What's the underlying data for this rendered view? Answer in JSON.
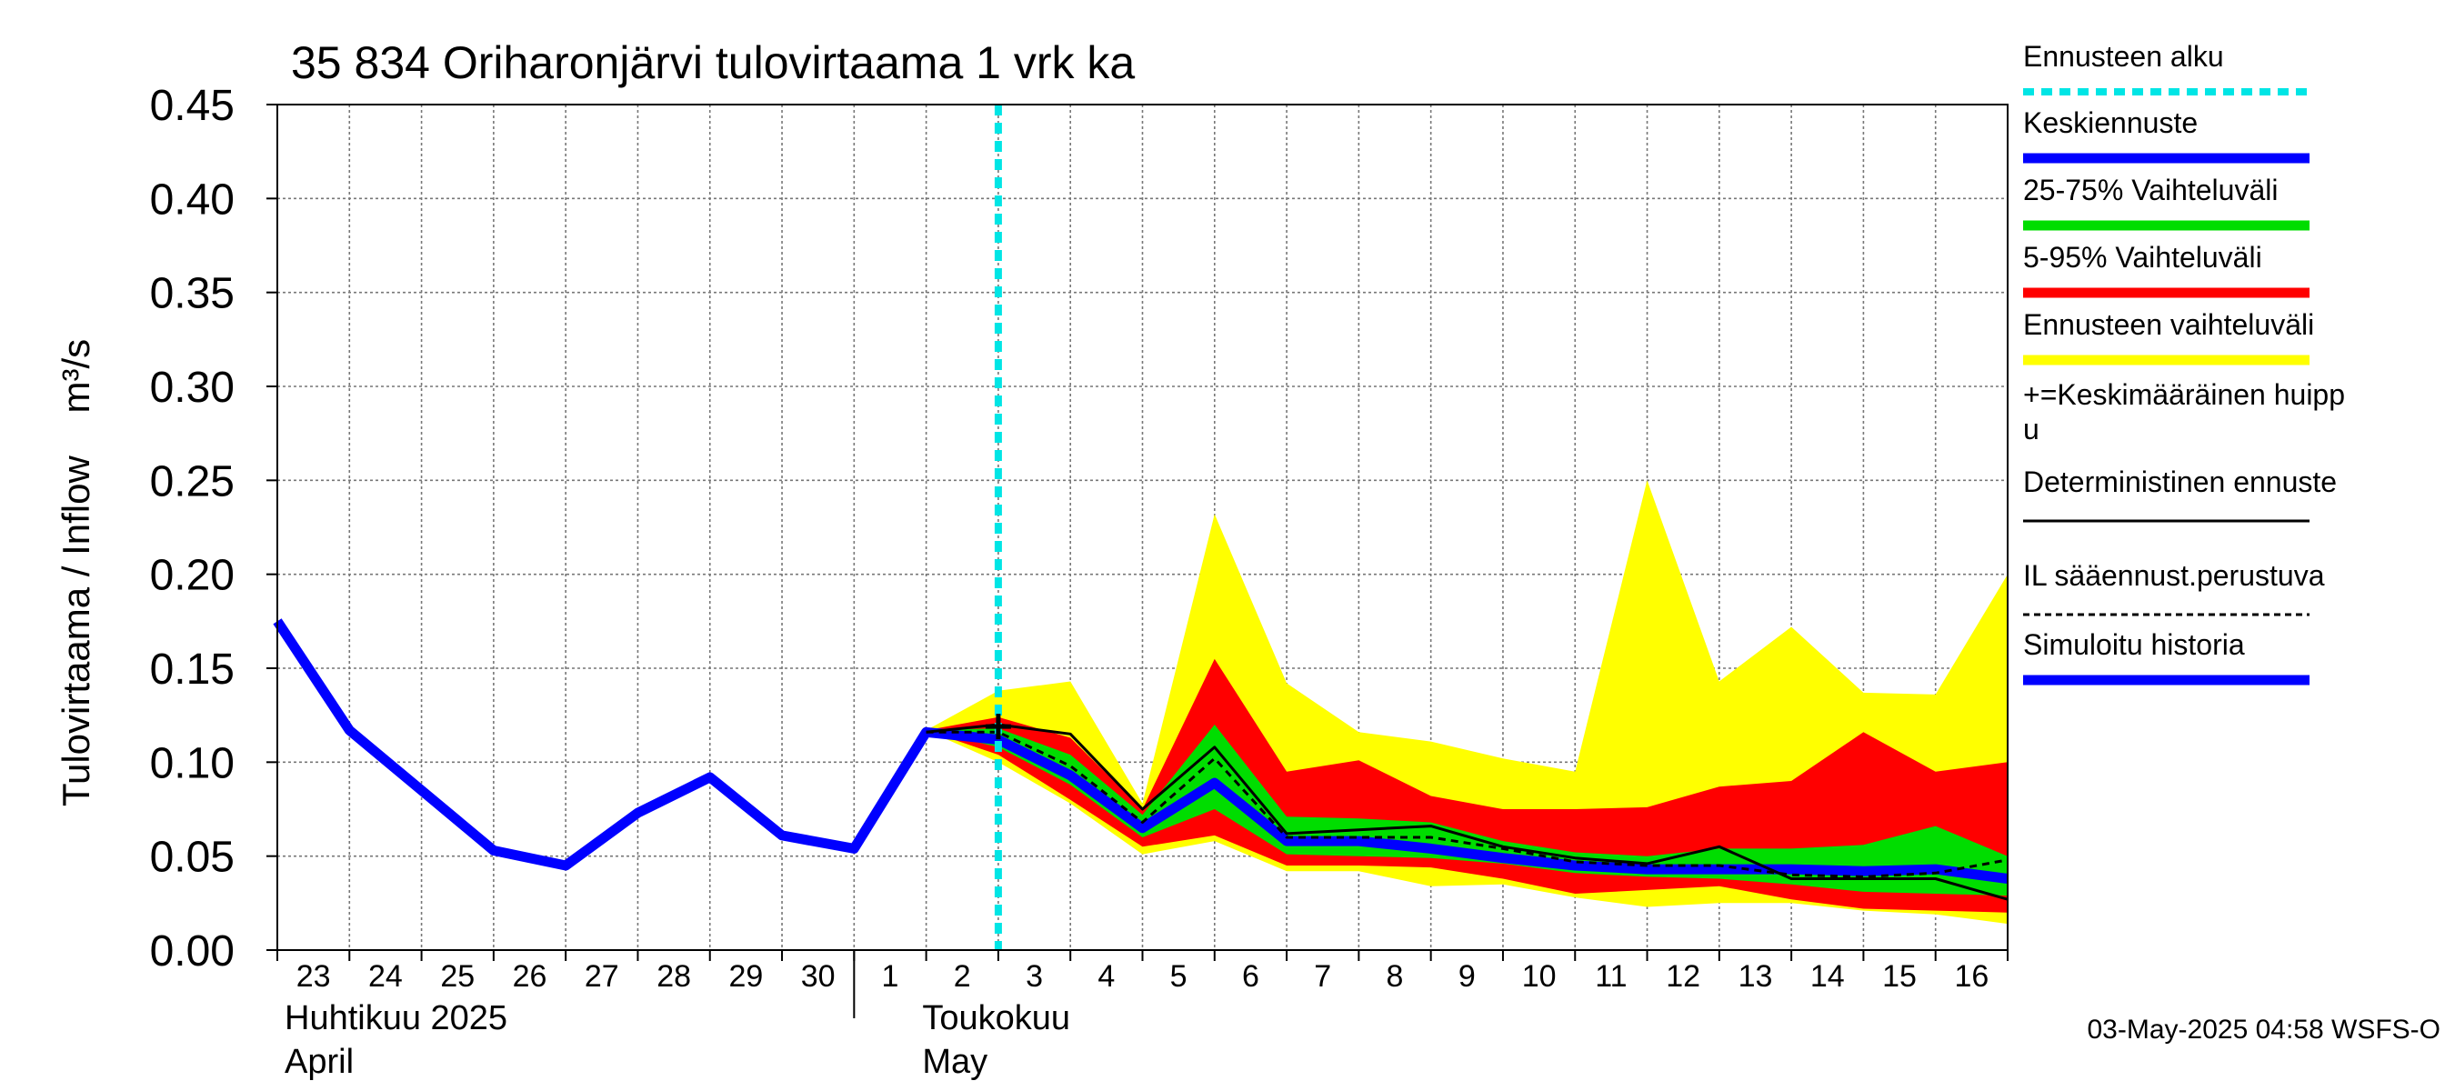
{
  "chart_data": {
    "type": "area",
    "title": "35 834 Oriharonjärvi tulovirtaama 1 vrk ka",
    "ylabel": "Tulovirtaama / Inflow    m³/s",
    "ylim": [
      0,
      0.45
    ],
    "yticks": [
      "0.00",
      "0.05",
      "0.10",
      "0.15",
      "0.20",
      "0.25",
      "0.30",
      "0.35",
      "0.40",
      "0.45"
    ],
    "xrange_days": [
      0,
      24
    ],
    "x_tick_labels": [
      "23",
      "24",
      "25",
      "26",
      "27",
      "28",
      "29",
      "30",
      "1",
      "2",
      "3",
      "4",
      "5",
      "6",
      "7",
      "8",
      "9",
      "10",
      "11",
      "12",
      "13",
      "14",
      "15",
      "16"
    ],
    "months": [
      {
        "fi": "Huhtikuu  2025",
        "en": "April",
        "start_day": 0
      },
      {
        "fi": "Toukokuu",
        "en": "May",
        "start_day": 8
      }
    ],
    "forecast_start_day": 10,
    "footer": "03-May-2025 04:58 WSFS-O",
    "legend": [
      {
        "label": "Ennusteen alku",
        "color": "#00e5e5",
        "style": "dotted"
      },
      {
        "label": "Keskiennuste",
        "color": "#0000ff",
        "style": "solid"
      },
      {
        "label": "25-75% Vaihteluväli",
        "color": "#00dd00",
        "style": "solid"
      },
      {
        "label": "5-95% Vaihteluväli",
        "color": "#ff0000",
        "style": "solid"
      },
      {
        "label": "Ennusteen vaihteluväli",
        "color": "#ffff00",
        "style": "solid"
      },
      {
        "label": "+=Keskimääräinen huipp",
        "label2": "u",
        "color": "#000000",
        "style": "marker"
      },
      {
        "label": "Deterministinen ennuste",
        "color": "#000000",
        "style": "thin"
      },
      {
        "label": "IL sääennust.perustuva",
        "color": "#000000",
        "style": "dashed"
      },
      {
        "label": "Simuloitu historia",
        "color": "#0000ff",
        "style": "solid"
      }
    ],
    "x_band": [
      9,
      10,
      11,
      12,
      13,
      14,
      15,
      16,
      17,
      18,
      19,
      20,
      21,
      22,
      23,
      24
    ],
    "yellow_band": {
      "upper": [
        0.117,
        0.138,
        0.143,
        0.078,
        0.232,
        0.142,
        0.116,
        0.111,
        0.102,
        0.095,
        0.25,
        0.143,
        0.172,
        0.137,
        0.136,
        0.2
      ],
      "lower": [
        0.117,
        0.1,
        0.078,
        0.051,
        0.058,
        0.042,
        0.042,
        0.034,
        0.035,
        0.028,
        0.023,
        0.025,
        0.025,
        0.021,
        0.019,
        0.014
      ]
    },
    "red_band": {
      "upper": [
        0.117,
        0.124,
        0.113,
        0.075,
        0.155,
        0.095,
        0.101,
        0.082,
        0.075,
        0.075,
        0.076,
        0.087,
        0.09,
        0.116,
        0.095,
        0.1
      ],
      "lower": [
        0.117,
        0.104,
        0.08,
        0.055,
        0.061,
        0.045,
        0.045,
        0.044,
        0.038,
        0.03,
        0.032,
        0.034,
        0.027,
        0.022,
        0.021,
        0.02
      ]
    },
    "green_band": {
      "upper": [
        0.117,
        0.118,
        0.104,
        0.072,
        0.12,
        0.071,
        0.07,
        0.068,
        0.058,
        0.052,
        0.05,
        0.054,
        0.054,
        0.056,
        0.066,
        0.05
      ],
      "lower": [
        0.117,
        0.108,
        0.088,
        0.06,
        0.075,
        0.051,
        0.05,
        0.049,
        0.046,
        0.041,
        0.039,
        0.038,
        0.035,
        0.031,
        0.03,
        0.029
      ]
    },
    "series": [
      {
        "name": "Simuloitu historia",
        "color": "#0000ff",
        "x": [
          0,
          1,
          2,
          3,
          4,
          5,
          6,
          7,
          8,
          9,
          10
        ],
        "values": [
          0.175,
          0.117,
          0.085,
          0.053,
          0.045,
          0.073,
          0.092,
          0.061,
          0.054,
          0.116,
          0.112
        ]
      },
      {
        "name": "Keskiennuste",
        "color": "#0000ff",
        "x": [
          10,
          11,
          12,
          13,
          14,
          15,
          16,
          17,
          18,
          19,
          20,
          21,
          22,
          23,
          24
        ],
        "values": [
          0.112,
          0.093,
          0.065,
          0.089,
          0.058,
          0.058,
          0.054,
          0.049,
          0.045,
          0.043,
          0.043,
          0.043,
          0.042,
          0.043,
          0.038
        ]
      },
      {
        "name": "Deterministinen ennuste",
        "color": "#000000",
        "x": [
          9,
          10,
          11,
          12,
          13,
          14,
          15,
          16,
          17,
          18,
          19,
          20,
          21,
          22,
          23,
          24
        ],
        "values": [
          0.116,
          0.12,
          0.115,
          0.075,
          0.108,
          0.062,
          0.064,
          0.066,
          0.055,
          0.049,
          0.046,
          0.055,
          0.038,
          0.038,
          0.038,
          0.027
        ]
      },
      {
        "name": "IL sääennust.perustuva",
        "color": "#000000",
        "x": [
          9,
          10,
          11,
          12,
          13,
          14,
          15,
          16,
          17,
          18,
          19,
          20,
          21,
          22,
          23,
          24
        ],
        "values": [
          0.116,
          0.116,
          0.098,
          0.068,
          0.102,
          0.06,
          0.06,
          0.06,
          0.054,
          0.047,
          0.045,
          0.045,
          0.04,
          0.039,
          0.041,
          0.048
        ]
      }
    ],
    "mean_peak": {
      "x": 10,
      "y": 0.119
    }
  }
}
